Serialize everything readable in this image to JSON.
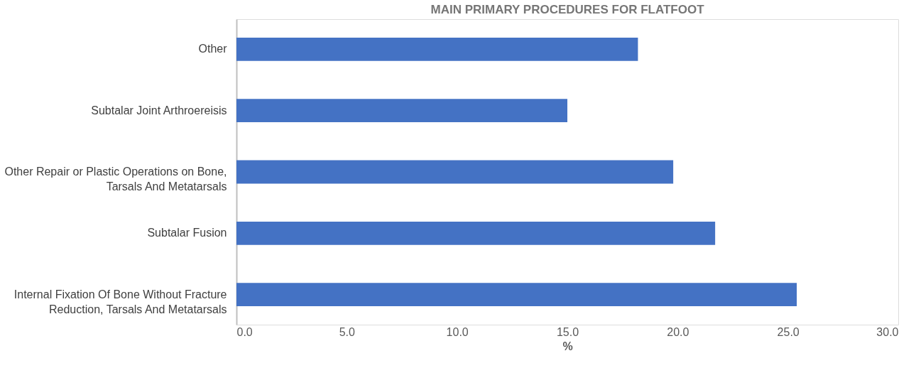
{
  "chart_data": {
    "type": "bar",
    "orientation": "horizontal",
    "title": "MAIN PRIMARY PROCEDURES FOR FLATFOOT",
    "xlabel": "%",
    "categories": [
      "Other",
      "Subtalar Joint Arthroereisis",
      "Other Repair or Plastic Operations on Bone, Tarsals And Metatarsals",
      "Subtalar Fusion",
      "Internal Fixation Of Bone Without Fracture Reduction, Tarsals And Metatarsals"
    ],
    "values": [
      18.2,
      15.0,
      19.8,
      21.7,
      25.4
    ],
    "color": "#4472c4",
    "xlim": [
      0,
      30
    ],
    "xticks": [
      {
        "value": 0,
        "label": "0.0"
      },
      {
        "value": 5,
        "label": "5.0"
      },
      {
        "value": 10,
        "label": "10.0"
      },
      {
        "value": 15,
        "label": "15.0"
      },
      {
        "value": 20,
        "label": "20.0"
      },
      {
        "value": 25,
        "label": "25.0"
      },
      {
        "value": 30,
        "label": "30.0"
      }
    ],
    "grid": false
  }
}
